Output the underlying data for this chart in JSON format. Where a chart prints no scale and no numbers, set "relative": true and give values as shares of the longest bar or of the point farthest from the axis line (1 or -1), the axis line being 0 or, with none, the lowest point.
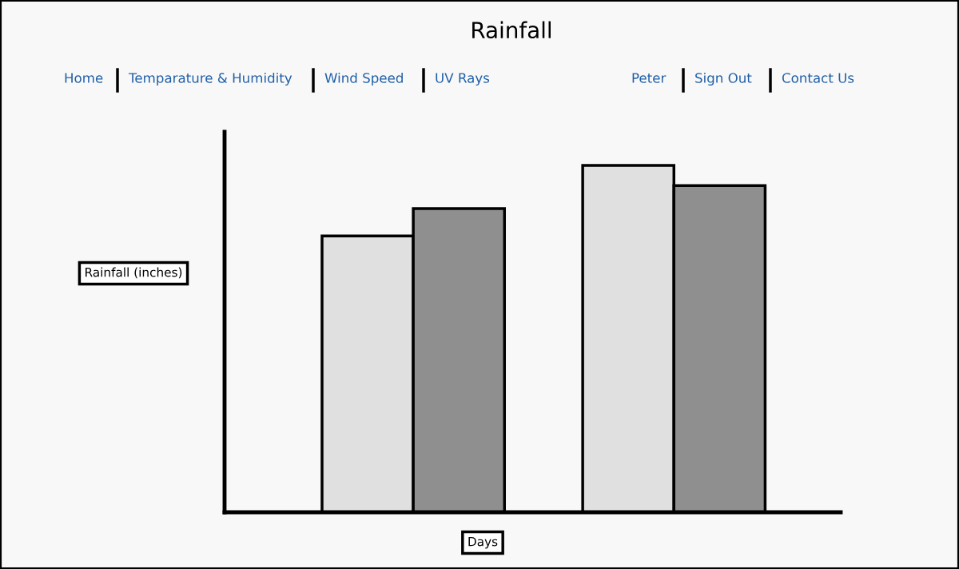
{
  "chart_data": {
    "type": "bar",
    "title": "Rainfall",
    "xlabel": "Days",
    "ylabel": "Rainfall (inches)",
    "relative": true,
    "categories": [
      null,
      null
    ],
    "series": [
      {
        "color": "#e0e0e0",
        "values": [
          0.797,
          1
        ]
      },
      {
        "color": "#8f8f8f",
        "values": [
          0.876,
          0.942
        ]
      }
    ],
    "annotations": [
      "Home",
      "Temparature & Humidity",
      "Wind Speed",
      "UV Rays",
      "Peter",
      "Sign Out",
      "Contact Us"
    ],
    "grid": false,
    "legend": false
  }
}
